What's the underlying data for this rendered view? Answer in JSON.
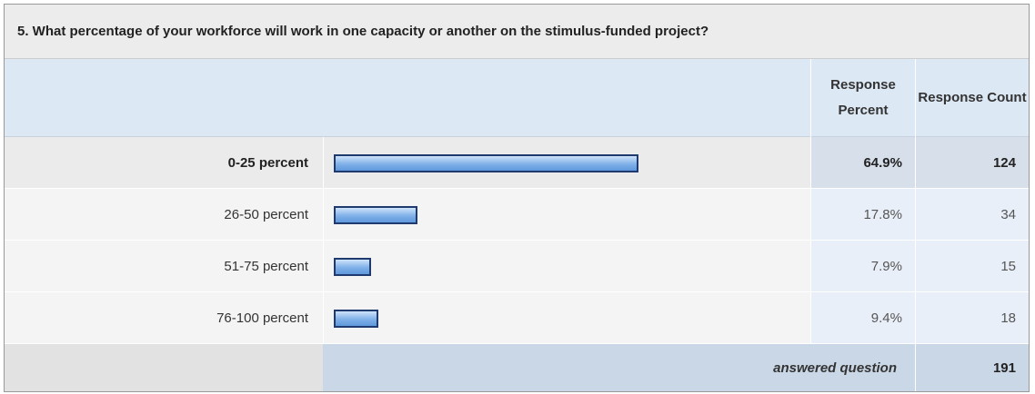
{
  "question": "5. What percentage of your workforce will work in one capacity or another on the stimulus-funded project?",
  "headers": [
    "Response Percent",
    "Response Count"
  ],
  "rows": [
    {
      "label": "0-25 percent",
      "percent": 64.9,
      "percent_label": "64.9%",
      "count": 124
    },
    {
      "label": "26-50 percent",
      "percent": 17.8,
      "percent_label": "17.8%",
      "count": 34
    },
    {
      "label": "51-75 percent",
      "percent": 7.9,
      "percent_label": "7.9%",
      "count": 15
    },
    {
      "label": "76-100 percent",
      "percent": 9.4,
      "percent_label": "9.4%",
      "count": 18
    }
  ],
  "footer": {
    "label": "answered question",
    "count": 191
  }
}
